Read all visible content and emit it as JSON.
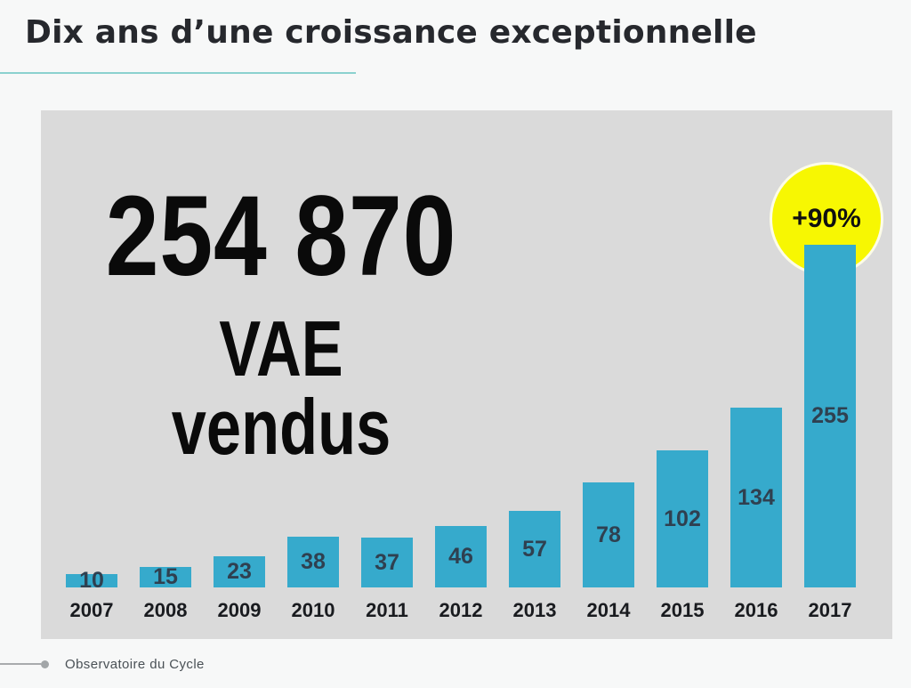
{
  "header": {
    "title": "Dix ans d’une croissance exceptionnelle"
  },
  "panel": {
    "headline_value": "254 870",
    "headline_label": "VAE vendus",
    "badge_label": "+90%"
  },
  "footer": {
    "source": "Observatoire du Cycle"
  },
  "colors": {
    "page_background": "#f7f8f8",
    "panel_background": "#dadada",
    "bar": "#36aacc",
    "bar_value_label": "#2f4050",
    "year_label": "#191b1f",
    "badge_fill": "#f7f702",
    "accent_underline": "#8bd1cf",
    "title_text": "#26282d"
  },
  "chart_data": {
    "type": "bar",
    "title": "Dix ans d’une croissance exceptionnelle",
    "categories": [
      "2007",
      "2008",
      "2009",
      "2010",
      "2011",
      "2012",
      "2013",
      "2014",
      "2015",
      "2016",
      "2017"
    ],
    "values": [
      10,
      15,
      23,
      38,
      37,
      46,
      57,
      78,
      102,
      134,
      255
    ],
    "xlabel": "",
    "ylabel": "",
    "ylim": [
      0,
      255
    ],
    "grid": false,
    "legend": false,
    "bar_color": "#36aacc",
    "value_labels": "centered-inside-bars",
    "annotations": [
      {
        "text": "+90%",
        "target_category": "2017",
        "style": "yellow-circle-badge"
      },
      {
        "text": "254 870",
        "role": "headline-total"
      },
      {
        "text": "VAE vendus",
        "role": "headline-sublabel"
      }
    ]
  }
}
